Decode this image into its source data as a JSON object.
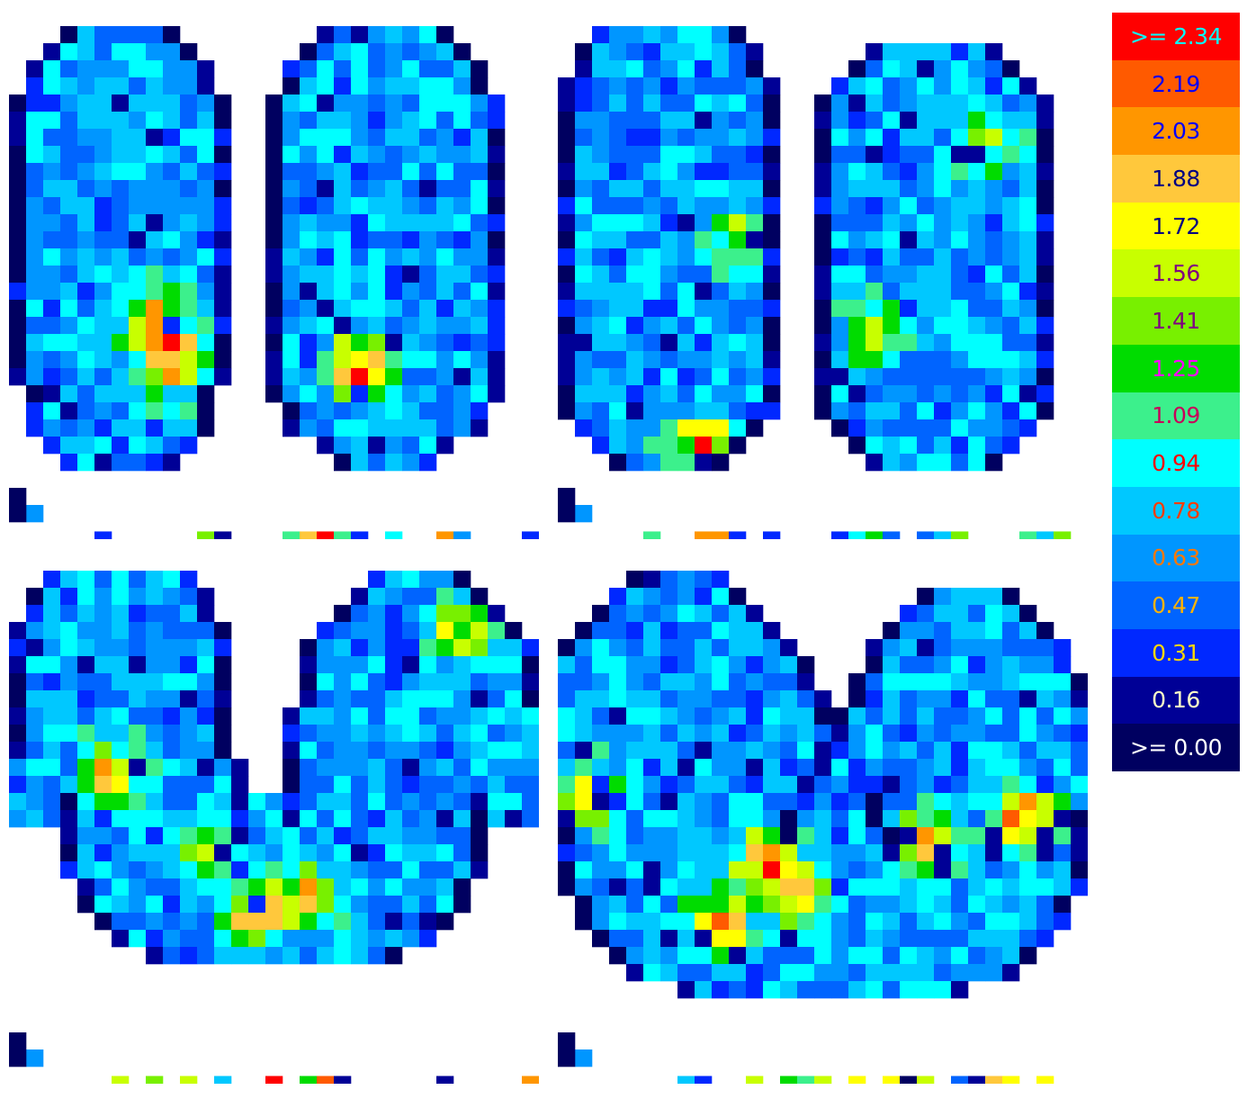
{
  "chart_data": {
    "type": "heatmap",
    "legend": {
      "placement": "right",
      "entries": [
        {
          "label": ">= 2.34",
          "value": 2.34,
          "color": "#FF0000",
          "text_color": "#00FFFF"
        },
        {
          "label": "2.19",
          "value": 2.19,
          "color": "#FF5A00",
          "text_color": "#0000FF"
        },
        {
          "label": "2.03",
          "value": 2.03,
          "color": "#FF9600",
          "text_color": "#0000FF"
        },
        {
          "label": "1.88",
          "value": 1.88,
          "color": "#FFC83C",
          "text_color": "#000080"
        },
        {
          "label": "1.72",
          "value": 1.72,
          "color": "#FFFF00",
          "text_color": "#000080"
        },
        {
          "label": "1.56",
          "value": 1.56,
          "color": "#C8FF00",
          "text_color": "#800080"
        },
        {
          "label": "1.41",
          "value": 1.41,
          "color": "#78F000",
          "text_color": "#800080"
        },
        {
          "label": "1.25",
          "value": 1.25,
          "color": "#00DC00",
          "text_color": "#FF00FF"
        },
        {
          "label": "1.09",
          "value": 1.09,
          "color": "#3CF08C",
          "text_color": "#C8005A"
        },
        {
          "label": "0.94",
          "value": 0.94,
          "color": "#00FFFF",
          "text_color": "#FF0000"
        },
        {
          "label": "0.78",
          "value": 0.78,
          "color": "#00C8FF",
          "text_color": "#FF3C00"
        },
        {
          "label": "0.63",
          "value": 0.63,
          "color": "#0096FF",
          "text_color": "#FF7800"
        },
        {
          "label": "0.47",
          "value": 0.47,
          "color": "#0064FF",
          "text_color": "#FFB400"
        },
        {
          "label": "0.31",
          "value": 0.31,
          "color": "#0028FF",
          "text_color": "#FFD700"
        },
        {
          "label": "0.16",
          "value": 0.16,
          "color": "#000096",
          "text_color": "#FFFFC8"
        },
        {
          "label": ">= 0.00",
          "value": 0.0,
          "color": "#000060",
          "text_color": "#FFFFFF"
        }
      ]
    },
    "panels": [
      {
        "id": "top-left",
        "grid": {
          "cols": 31,
          "rows": 31
        },
        "lobes": [
          {
            "cx": 6.5,
            "ry_top": 0.5,
            "ry_bottom": 26.5,
            "half_widths": [
              2.5,
              3.5,
              4.5,
              5.5,
              5.8,
              6,
              6,
              6,
              6,
              6,
              6,
              6,
              6,
              6,
              6,
              6,
              6,
              6,
              6,
              6,
              6,
              6,
              5.8,
              5.5,
              5,
              4,
              3
            ]
          },
          {
            "cx": 22,
            "ry_top": 0.5,
            "ry_bottom": 27,
            "half_widths": [
              2.5,
              4,
              5,
              5.5,
              6,
              6.5,
              6.5,
              6.5,
              6.5,
              6.5,
              6.5,
              6.5,
              6.5,
              6.5,
              6.5,
              6.5,
              7,
              7,
              7,
              7,
              7,
              7,
              6.5,
              6,
              5.5,
              4,
              3
            ]
          }
        ],
        "hotspots": [
          {
            "x": 9,
            "y": 20,
            "v": 2.3
          },
          {
            "x": 20,
            "y": 20.5,
            "v": 2.35
          },
          {
            "x": 8,
            "y": 17.5,
            "v": 1.9
          }
        ],
        "noise_seed": 11
      },
      {
        "id": "top-right",
        "grid": {
          "cols": 31,
          "rows": 31
        },
        "lobes": [
          {
            "cx": 6.5,
            "ry_top": 0.5,
            "ry_bottom": 26.5,
            "half_widths": [
              2.5,
              4,
              5,
              5.5,
              6,
              6.5,
              6.5,
              6.5,
              6.5,
              6.5,
              6.5,
              6.5,
              6.5,
              6.5,
              6.5,
              6.5,
              6.5,
              6.5,
              6.5,
              6.5,
              6.5,
              6.5,
              6.5,
              6,
              5,
              4,
              3
            ]
          },
          {
            "cx": 22,
            "ry_top": 1.5,
            "ry_bottom": 27,
            "half_widths": [
              3,
              4,
              5,
              6,
              6.5,
              7,
              7,
              7,
              7,
              7,
              7,
              7,
              7,
              7,
              7,
              7,
              7,
              7,
              7,
              7,
              7,
              7,
              6.5,
              6,
              5,
              4
            ]
          }
        ],
        "hotspots": [
          {
            "x": 24.5,
            "y": 7.5,
            "v": 1.6
          },
          {
            "x": 10,
            "y": 13,
            "v": 1.5
          },
          {
            "x": 8,
            "y": 25,
            "v": 2.3
          },
          {
            "x": 18,
            "y": 18.5,
            "v": 1.85
          }
        ],
        "noise_seed": 29
      },
      {
        "id": "bottom-left",
        "grid": {
          "cols": 31,
          "rows": 31
        },
        "lobes": [
          {
            "cx": 6.5,
            "ry_top": 0.5,
            "ry_bottom": 16,
            "half_widths": [
              3,
              4,
              5,
              5.5,
              6,
              6,
              6,
              6,
              6.5,
              6.5,
              6.5,
              6.5,
              7,
              7,
              7,
              7
            ]
          },
          {
            "cx": 24,
            "ry_top": 0.5,
            "ry_bottom": 16,
            "half_widths": [
              2,
              3,
              4,
              5,
              6,
              6.5,
              7,
              7,
              7,
              7.5,
              7.5,
              8,
              8,
              8,
              8,
              8
            ]
          },
          {
            "cx": 15.5,
            "ry_top": 14,
            "ry_bottom": 23.5,
            "half_widths": [
              12,
              12,
              12,
              12,
              12,
              11.5,
              11,
              10,
              9,
              7
            ]
          }
        ],
        "hotspots": [
          {
            "x": 14,
            "y": 20.5,
            "v": 2.35
          },
          {
            "x": 17,
            "y": 19.5,
            "v": 2.0
          },
          {
            "x": 5.5,
            "y": 12.5,
            "v": 2.2
          },
          {
            "x": 26,
            "y": 4,
            "v": 1.9
          },
          {
            "x": 11,
            "y": 17,
            "v": 1.8
          }
        ],
        "noise_seed": 47
      },
      {
        "id": "bottom-right",
        "grid": {
          "cols": 31,
          "rows": 31
        },
        "lobes": [
          {
            "cx": 7,
            "ry_top": 0.5,
            "ry_bottom": 17,
            "half_widths": [
              1.5,
              2.5,
              4,
              5,
              6,
              7,
              7.5,
              8,
              8.5,
              9,
              9.5,
              10,
              10.5,
              11,
              11.5,
              12,
              12.5
            ]
          },
          {
            "cx": 24,
            "ry_top": 1.5,
            "ry_bottom": 17,
            "half_widths": [
              2,
              3,
              4,
              5,
              5.5,
              6,
              6.5,
              7,
              7.5,
              8,
              8.5,
              9,
              9.5,
              10,
              10.5,
              11
            ]
          },
          {
            "cx": 15.5,
            "ry_top": 15,
            "ry_bottom": 26,
            "half_widths": [
              15,
              15,
              15,
              15,
              15,
              14.5,
              14,
              13,
              12,
              11,
              8
            ]
          }
        ],
        "hotspots": [
          {
            "x": 11.5,
            "y": 17.5,
            "v": 2.25
          },
          {
            "x": 14,
            "y": 19.5,
            "v": 2.0
          },
          {
            "x": 21,
            "y": 16.5,
            "v": 2.2
          },
          {
            "x": 27,
            "y": 15,
            "v": 2.3
          },
          {
            "x": 1.5,
            "y": 13.5,
            "v": 2.1
          },
          {
            "x": 9,
            "y": 21,
            "v": 2.25
          }
        ],
        "noise_seed": 83
      }
    ]
  }
}
